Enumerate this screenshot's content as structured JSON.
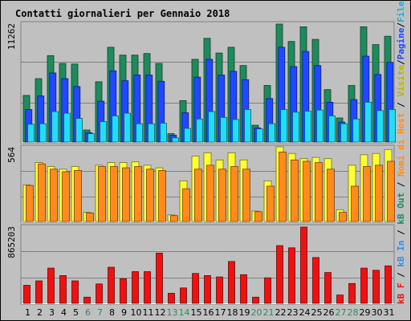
{
  "title": "Contatti giornalieri per Gennaio 2018",
  "colors": {
    "background": "#c0c0c0",
    "title": "#0000cc",
    "visits": "#1f8a5c",
    "pages": "#2048ff",
    "files": "#22ddf5",
    "hosts": "#ffff33",
    "kb_out": "#ff8c1a",
    "kb_in": "#3b8be0",
    "kb_f": "#ee1111",
    "weekend_label": "#2e8b57",
    "weekday_label": "#000000"
  },
  "legend": {
    "lower": [
      {
        "text": "kB F",
        "color": "#ee1111"
      },
      {
        "text": "kB In",
        "color": "#3b8be0"
      },
      {
        "text": "kB Out",
        "color": "#1f8a5c"
      }
    ],
    "sep1": "/",
    "sep2": "/",
    "middle": {
      "text": "Nomi di Host",
      "color": "#ff8c1a"
    },
    "upper": [
      {
        "text": "Visite",
        "color": "#b5b500"
      },
      {
        "text": "Pagine",
        "color": "#2048ff"
      },
      {
        "text": "File",
        "color": "#22aacc"
      },
      {
        "text": "Contatti",
        "color": "#1f8a5c"
      }
    ]
  },
  "chart_data": [
    {
      "type": "bar",
      "panel": "hits",
      "max_label": "11262",
      "ylim": [
        0,
        11262
      ],
      "x": [
        "1",
        "2",
        "3",
        "4",
        "5",
        "6",
        "7",
        "8",
        "9",
        "10",
        "11",
        "12",
        "13",
        "14",
        "15",
        "16",
        "17",
        "18",
        "19",
        "20",
        "21",
        "22",
        "23",
        "24",
        "25",
        "26",
        "27",
        "28",
        "29",
        "30",
        "31"
      ],
      "series": [
        {
          "name": "Contatti",
          "values": [
            4450,
            6050,
            8250,
            7500,
            7450,
            1150,
            5750,
            9050,
            8300,
            8300,
            8450,
            7500,
            800,
            3950,
            7900,
            9900,
            8500,
            9050,
            7300,
            1600,
            5400,
            11262,
            9600,
            11000,
            9800,
            5000,
            2300,
            5400,
            11000,
            9300,
            10100
          ]
        },
        {
          "name": "Pagine",
          "values": [
            3100,
            4400,
            6600,
            6050,
            5300,
            900,
            3900,
            6800,
            5850,
            6400,
            6400,
            5800,
            650,
            2800,
            6200,
            7900,
            6400,
            6750,
            5950,
            1350,
            4150,
            9050,
            7200,
            8650,
            7300,
            3800,
            1900,
            4050,
            8200,
            6450,
            7600
          ]
        },
        {
          "name": "File",
          "values": [
            1700,
            1750,
            2900,
            2750,
            2250,
            800,
            1950,
            2500,
            2750,
            1750,
            1750,
            1800,
            400,
            1300,
            2200,
            2900,
            2350,
            2150,
            3100,
            1250,
            1750,
            3100,
            2850,
            2950,
            3050,
            2500,
            1750,
            2200,
            3800,
            3000,
            3100
          ]
        }
      ]
    },
    {
      "type": "bar",
      "panel": "hosts",
      "max_label": "564",
      "ylim": [
        0,
        564
      ],
      "x": [
        "1",
        "2",
        "3",
        "4",
        "5",
        "6",
        "7",
        "8",
        "9",
        "10",
        "11",
        "12",
        "13",
        "14",
        "15",
        "16",
        "17",
        "18",
        "19",
        "20",
        "21",
        "22",
        "23",
        "24",
        "25",
        "26",
        "27",
        "28",
        "29",
        "30",
        "31"
      ],
      "series": [
        {
          "name": "Visite",
          "values": [
            280,
            450,
            420,
            400,
            420,
            70,
            430,
            450,
            450,
            455,
            430,
            410,
            50,
            310,
            500,
            525,
            470,
            525,
            470,
            80,
            310,
            570,
            520,
            480,
            490,
            480,
            90,
            430,
            510,
            520,
            550
          ]
        },
        {
          "name": "Nomi di Host",
          "values": [
            275,
            440,
            400,
            380,
            390,
            65,
            420,
            420,
            410,
            420,
            400,
            390,
            45,
            250,
            400,
            430,
            400,
            420,
            400,
            75,
            270,
            530,
            470,
            460,
            450,
            400,
            70,
            270,
            420,
            430,
            460
          ]
        }
      ]
    },
    {
      "type": "bar",
      "panel": "kbytes",
      "max_label": "865203",
      "ylim": [
        0,
        865203
      ],
      "x": [
        "1",
        "2",
        "3",
        "4",
        "5",
        "6",
        "7",
        "8",
        "9",
        "10",
        "11",
        "12",
        "13",
        "14",
        "15",
        "16",
        "17",
        "18",
        "19",
        "20",
        "21",
        "22",
        "23",
        "24",
        "25",
        "26",
        "27",
        "28",
        "29",
        "30",
        "31"
      ],
      "series": [
        {
          "name": "kB F",
          "values": [
            205000,
            255000,
            400000,
            315000,
            255000,
            70000,
            220000,
            410000,
            280000,
            360000,
            360000,
            570000,
            115000,
            175000,
            340000,
            315000,
            300000,
            475000,
            325000,
            70000,
            290000,
            655000,
            630000,
            865203,
            520000,
            350000,
            95000,
            225000,
            400000,
            375000,
            425000
          ]
        }
      ]
    }
  ],
  "weekends": [
    "6",
    "7",
    "13",
    "14",
    "20",
    "21",
    "27",
    "28"
  ]
}
